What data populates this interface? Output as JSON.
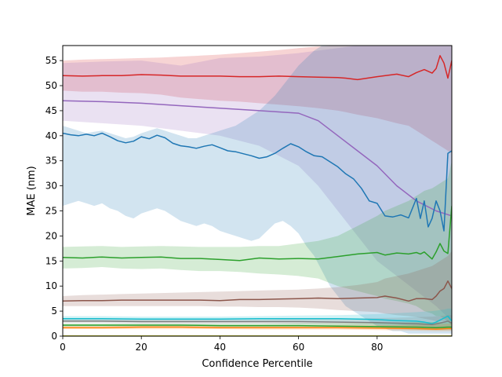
{
  "chart_data": {
    "type": "line",
    "xlabel": "Confidence Percentile",
    "ylabel": "MAE (nm)",
    "xlim": [
      0,
      99
    ],
    "ylim": [
      0,
      58
    ],
    "xticks": [
      0,
      20,
      40,
      60,
      80
    ],
    "yticks": [
      0,
      5,
      10,
      15,
      20,
      25,
      30,
      35,
      40,
      45,
      50,
      55
    ],
    "grid": false,
    "legend": "none",
    "series": [
      {
        "color": "#d62728",
        "x": [
          0,
          5,
          10,
          15,
          20,
          25,
          30,
          35,
          40,
          45,
          50,
          55,
          60,
          65,
          70,
          72,
          75,
          80,
          85,
          88,
          90,
          92,
          94,
          95,
          96,
          97,
          98,
          99
        ],
        "y": [
          52.0,
          51.9,
          52.0,
          52.0,
          52.2,
          52.1,
          51.9,
          51.9,
          51.9,
          51.8,
          51.8,
          51.9,
          51.8,
          51.7,
          51.6,
          51.5,
          51.2,
          51.8,
          52.3,
          51.8,
          52.6,
          53.2,
          52.5,
          53.4,
          56.0,
          54.5,
          51.5,
          55.0
        ],
        "lower": [
          49.0,
          48.8,
          48.8,
          48.6,
          48.5,
          48.2,
          47.6,
          47.3,
          47.0,
          46.8,
          46.5,
          46.2,
          45.9,
          45.5,
          45.0,
          44.7,
          44.2,
          43.5,
          42.5,
          42.0,
          41.0,
          40.0,
          39.0,
          38.5,
          38.0,
          37.5,
          37.0,
          36.5
        ],
        "upper": [
          55.0,
          55.2,
          55.3,
          55.4,
          55.5,
          55.6,
          55.8,
          56.0,
          56.2,
          56.5,
          56.8,
          57.1,
          57.5,
          57.8,
          58.0,
          58.0,
          58.0,
          58.0,
          58.0,
          58.0,
          58.0,
          58.0,
          58.0,
          58.0,
          58.0,
          58.0,
          58.0,
          58.0
        ]
      },
      {
        "color": "#9467bd",
        "x": [
          0,
          10,
          20,
          30,
          40,
          50,
          60,
          65,
          70,
          75,
          80,
          85,
          90,
          95,
          99
        ],
        "y": [
          47.0,
          46.8,
          46.5,
          46.0,
          45.5,
          45.0,
          44.5,
          43.0,
          40.0,
          37.0,
          34.0,
          30.0,
          27.0,
          25.0,
          24.0
        ],
        "lower": [
          43.0,
          42.5,
          42.0,
          41.0,
          40.0,
          38.0,
          34.0,
          30.0,
          25.0,
          20.0,
          15.0,
          12.0,
          9.0,
          6.0,
          3.0
        ],
        "upper": [
          54.5,
          54.8,
          55.0,
          54.0,
          55.5,
          55.8,
          56.5,
          57.0,
          57.5,
          58.0,
          58.0,
          58.0,
          58.0,
          58.0,
          58.0
        ]
      },
      {
        "color": "#1f77b4",
        "x": [
          0,
          2,
          4,
          6,
          8,
          10,
          12,
          14,
          16,
          18,
          20,
          22,
          24,
          26,
          28,
          30,
          32,
          34,
          36,
          38,
          40,
          42,
          44,
          46,
          48,
          50,
          52,
          54,
          56,
          58,
          60,
          62,
          64,
          66,
          68,
          70,
          72,
          74,
          76,
          78,
          80,
          82,
          84,
          86,
          88,
          90,
          91,
          92,
          93,
          94,
          95,
          96,
          97,
          98,
          99
        ],
        "y": [
          40.5,
          40.2,
          40.0,
          40.3,
          40.0,
          40.5,
          39.8,
          39.0,
          38.6,
          38.9,
          39.8,
          39.4,
          40.1,
          39.6,
          38.5,
          38.0,
          37.8,
          37.5,
          37.9,
          38.2,
          37.6,
          37.0,
          36.8,
          36.4,
          36.0,
          35.5,
          35.8,
          36.5,
          37.5,
          38.4,
          37.8,
          36.8,
          36.0,
          35.8,
          34.8,
          33.8,
          32.4,
          31.4,
          29.5,
          27.0,
          26.5,
          24.0,
          23.8,
          24.2,
          23.6,
          27.5,
          23.5,
          27.0,
          21.8,
          23.5,
          27.0,
          25.0,
          21.0,
          36.5,
          37.0
        ],
        "lower": [
          26.0,
          26.5,
          27.0,
          26.5,
          26.0,
          26.5,
          25.5,
          25.0,
          24.0,
          23.5,
          24.5,
          25.0,
          25.5,
          25.0,
          24.0,
          23.0,
          22.5,
          22.0,
          22.5,
          22.0,
          21.0,
          20.5,
          20.0,
          19.5,
          19.0,
          19.5,
          21.0,
          22.5,
          23.0,
          22.0,
          20.5,
          18.0,
          16.0,
          13.0,
          10.0,
          8.0,
          6.0,
          5.0,
          4.0,
          3.0,
          2.0,
          1.5,
          1.0,
          1.0,
          0.5,
          0.5,
          0.5,
          0.5,
          0.5,
          0.5,
          0.5,
          0.5,
          0.5,
          0.5,
          0.5
        ],
        "upper": [
          42.0,
          41.5,
          41.0,
          40.5,
          40.8,
          41.0,
          40.5,
          40.0,
          39.5,
          39.8,
          40.5,
          41.0,
          41.5,
          41.0,
          40.5,
          40.0,
          39.5,
          39.5,
          40.0,
          40.5,
          41.0,
          41.5,
          42.0,
          43.0,
          44.0,
          45.0,
          46.5,
          48.0,
          50.0,
          52.0,
          54.0,
          55.5,
          57.0,
          58.0,
          58.0,
          58.0,
          58.0,
          58.0,
          58.0,
          58.0,
          58.0,
          58.0,
          58.0,
          58.0,
          58.0,
          58.0,
          58.0,
          58.0,
          58.0,
          58.0,
          58.0,
          58.0,
          58.0,
          58.0,
          58.0
        ]
      },
      {
        "color": "#2ca02c",
        "x": [
          0,
          5,
          10,
          15,
          20,
          25,
          30,
          35,
          40,
          45,
          50,
          55,
          60,
          65,
          70,
          75,
          80,
          82,
          85,
          88,
          90,
          91,
          92,
          94,
          95,
          96,
          97,
          98,
          99
        ],
        "y": [
          15.7,
          15.6,
          15.8,
          15.6,
          15.7,
          15.8,
          15.5,
          15.5,
          15.3,
          15.1,
          15.6,
          15.4,
          15.5,
          15.4,
          15.9,
          16.4,
          16.7,
          16.2,
          16.6,
          16.4,
          16.7,
          16.4,
          16.8,
          15.4,
          16.8,
          18.5,
          17.0,
          16.5,
          26.0
        ],
        "lower": [
          13.5,
          13.6,
          13.8,
          13.5,
          13.4,
          13.5,
          13.2,
          13.0,
          13.0,
          12.8,
          12.5,
          12.3,
          12.0,
          11.5,
          10.0,
          9.0,
          8.0,
          7.5,
          7.0,
          6.5,
          6.0,
          5.5,
          5.0,
          4.5,
          4.0,
          4.0,
          3.5,
          3.0,
          2.0
        ],
        "upper": [
          17.8,
          17.9,
          18.0,
          17.8,
          17.9,
          18.0,
          17.9,
          17.8,
          17.8,
          17.8,
          18.0,
          18.0,
          18.5,
          19.0,
          20.0,
          22.0,
          24.0,
          25.0,
          26.0,
          27.0,
          28.0,
          28.5,
          29.0,
          29.5,
          30.0,
          30.5,
          31.0,
          31.5,
          35.0
        ]
      },
      {
        "color": "#8c564b",
        "x": [
          0,
          5,
          10,
          15,
          20,
          25,
          30,
          35,
          40,
          45,
          50,
          55,
          60,
          65,
          70,
          75,
          80,
          82,
          85,
          88,
          90,
          92,
          94,
          95,
          96,
          97,
          98,
          99
        ],
        "y": [
          7.0,
          7.1,
          7.1,
          7.2,
          7.2,
          7.2,
          7.2,
          7.2,
          7.1,
          7.3,
          7.3,
          7.4,
          7.5,
          7.6,
          7.5,
          7.6,
          7.7,
          8.0,
          7.6,
          7.0,
          7.5,
          7.5,
          7.3,
          8.0,
          9.0,
          9.5,
          11.0,
          9.5
        ],
        "lower": [
          6.0,
          6.0,
          6.0,
          6.0,
          6.0,
          6.0,
          6.0,
          6.0,
          5.9,
          5.9,
          5.8,
          5.8,
          5.7,
          5.5,
          5.2,
          5.0,
          4.8,
          4.5,
          4.2,
          4.0,
          3.8,
          3.5,
          3.2,
          3.0,
          3.0,
          3.0,
          3.0,
          3.0
        ],
        "upper": [
          8.0,
          8.2,
          8.3,
          8.4,
          8.5,
          8.6,
          8.7,
          8.8,
          8.9,
          9.0,
          9.1,
          9.2,
          9.3,
          9.5,
          9.8,
          10.2,
          10.8,
          11.5,
          12.0,
          12.5,
          13.0,
          13.5,
          14.0,
          14.5,
          15.0,
          15.5,
          16.0,
          17.0
        ]
      },
      {
        "color": "#17becf",
        "x": [
          0,
          10,
          20,
          30,
          40,
          50,
          60,
          70,
          75,
          80,
          85,
          90,
          92,
          94,
          95,
          96,
          97,
          98,
          99
        ],
        "y": [
          3.5,
          3.5,
          3.4,
          3.4,
          3.4,
          3.5,
          3.5,
          3.5,
          3.4,
          3.3,
          3.1,
          3.0,
          2.8,
          2.5,
          2.8,
          3.2,
          3.6,
          4.0,
          3.0
        ],
        "lower": [
          3.0,
          3.0,
          2.9,
          2.9,
          2.9,
          2.9,
          2.9,
          2.8,
          2.7,
          2.5,
          2.3,
          2.0,
          1.8,
          1.6,
          1.6,
          1.6,
          1.5,
          1.5,
          1.5
        ],
        "upper": [
          4.0,
          4.0,
          3.9,
          3.9,
          3.9,
          4.0,
          4.1,
          4.2,
          4.3,
          4.4,
          4.6,
          4.8,
          4.9,
          5.0,
          5.1,
          5.2,
          5.3,
          5.5,
          5.5
        ]
      },
      {
        "color": "#7f7f7f",
        "x": [
          0,
          10,
          20,
          30,
          40,
          50,
          60,
          70,
          80,
          90,
          94,
          96,
          98,
          99
        ],
        "y": [
          3.0,
          3.0,
          2.9,
          2.9,
          2.9,
          2.9,
          2.9,
          2.8,
          2.7,
          2.5,
          2.3,
          2.6,
          3.0,
          2.6
        ],
        "lower": [
          2.6,
          2.6,
          2.5,
          2.5,
          2.5,
          2.5,
          2.4,
          2.3,
          2.1,
          1.9,
          1.8,
          1.8,
          1.8,
          1.8
        ],
        "upper": [
          3.4,
          3.4,
          3.3,
          3.3,
          3.3,
          3.3,
          3.4,
          3.5,
          3.6,
          3.8,
          3.9,
          4.0,
          4.2,
          4.2
        ]
      },
      {
        "color": "#2ca02c",
        "x": [
          0,
          10,
          20,
          30,
          40,
          50,
          60,
          70,
          80,
          90,
          95,
          98,
          99
        ],
        "y": [
          2.2,
          2.2,
          2.2,
          2.2,
          2.1,
          2.1,
          2.1,
          2.0,
          1.9,
          1.8,
          1.7,
          1.8,
          1.8
        ],
        "lower": [
          1.9,
          1.9,
          1.9,
          1.9,
          1.8,
          1.8,
          1.7,
          1.6,
          1.5,
          1.3,
          1.2,
          1.2,
          1.2
        ],
        "upper": [
          2.5,
          2.5,
          2.5,
          2.5,
          2.5,
          2.5,
          2.6,
          2.6,
          2.7,
          2.8,
          2.8,
          2.9,
          2.9
        ]
      },
      {
        "color": "#ff7f0e",
        "x": [
          0,
          10,
          20,
          30,
          40,
          50,
          60,
          70,
          80,
          90,
          95,
          98,
          99
        ],
        "y": [
          1.7,
          1.7,
          1.8,
          1.8,
          1.7,
          1.7,
          1.7,
          1.7,
          1.6,
          1.5,
          1.4,
          1.5,
          1.5
        ],
        "lower": [
          1.4,
          1.4,
          1.4,
          1.4,
          1.4,
          1.3,
          1.3,
          1.3,
          1.2,
          1.1,
          1.0,
          1.0,
          1.0
        ],
        "upper": [
          2.0,
          2.0,
          2.1,
          2.1,
          2.1,
          2.1,
          2.1,
          2.2,
          2.2,
          2.3,
          2.4,
          2.5,
          2.5
        ]
      },
      {
        "color": "#bcbd22",
        "x": [
          0,
          10,
          20,
          30,
          40,
          50,
          60,
          70,
          80,
          90,
          95,
          98,
          99
        ],
        "y": [
          0.05,
          0.05,
          0.05,
          0.05,
          0.05,
          0.05,
          0.05,
          0.05,
          0.05,
          0.05,
          0.05,
          0.05,
          0.05
        ],
        "lower": [
          0,
          0,
          0,
          0,
          0,
          0,
          0,
          0,
          0,
          0,
          0,
          0,
          0
        ],
        "upper": [
          0.2,
          0.2,
          0.2,
          0.2,
          0.2,
          0.2,
          0.2,
          0.2,
          0.2,
          0.2,
          0.2,
          0.2,
          0.2
        ]
      }
    ]
  }
}
